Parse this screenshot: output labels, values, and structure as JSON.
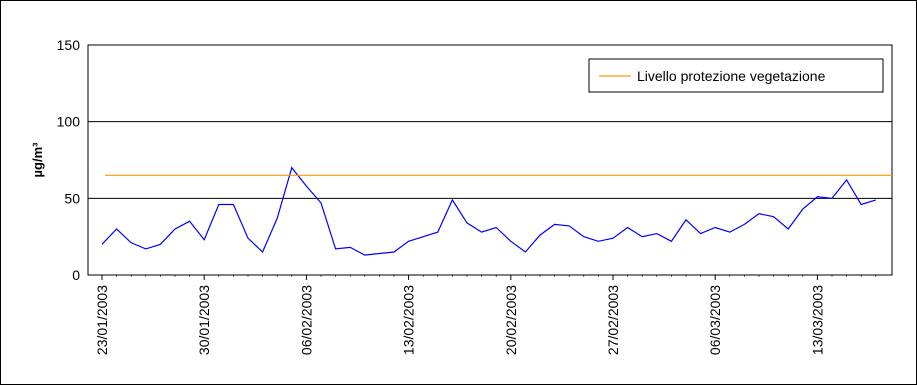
{
  "chart_data": {
    "type": "line",
    "title": "",
    "xlabel": "",
    "ylabel": "µg/m³",
    "ylim": [
      0,
      150
    ],
    "yticks": [
      0,
      50,
      100,
      150
    ],
    "x_tick_labels": [
      "23/01/2003",
      "30/01/2003",
      "06/02/2003",
      "13/02/2003",
      "20/02/2003",
      "27/02/2003",
      "06/03/2003",
      "13/03/2003"
    ],
    "x_start": "23/01/2003",
    "grid": true,
    "legend_position": "top-right",
    "series": [
      {
        "name": "",
        "color": "#0000ff",
        "values": [
          20,
          30,
          21,
          17,
          20,
          30,
          35,
          23,
          46,
          46,
          24,
          15,
          37,
          70,
          58,
          47,
          17,
          18,
          13,
          14,
          15,
          22,
          25,
          28,
          49,
          34,
          28,
          31,
          22,
          15,
          26,
          33,
          32,
          25,
          22,
          24,
          31,
          25,
          27,
          22,
          36,
          27,
          31,
          28,
          33,
          40,
          38,
          30,
          43,
          51,
          50,
          62,
          46,
          49
        ]
      },
      {
        "name": "Livello protezione vegetazione",
        "color": "#ff9900",
        "constant": 65
      }
    ]
  }
}
